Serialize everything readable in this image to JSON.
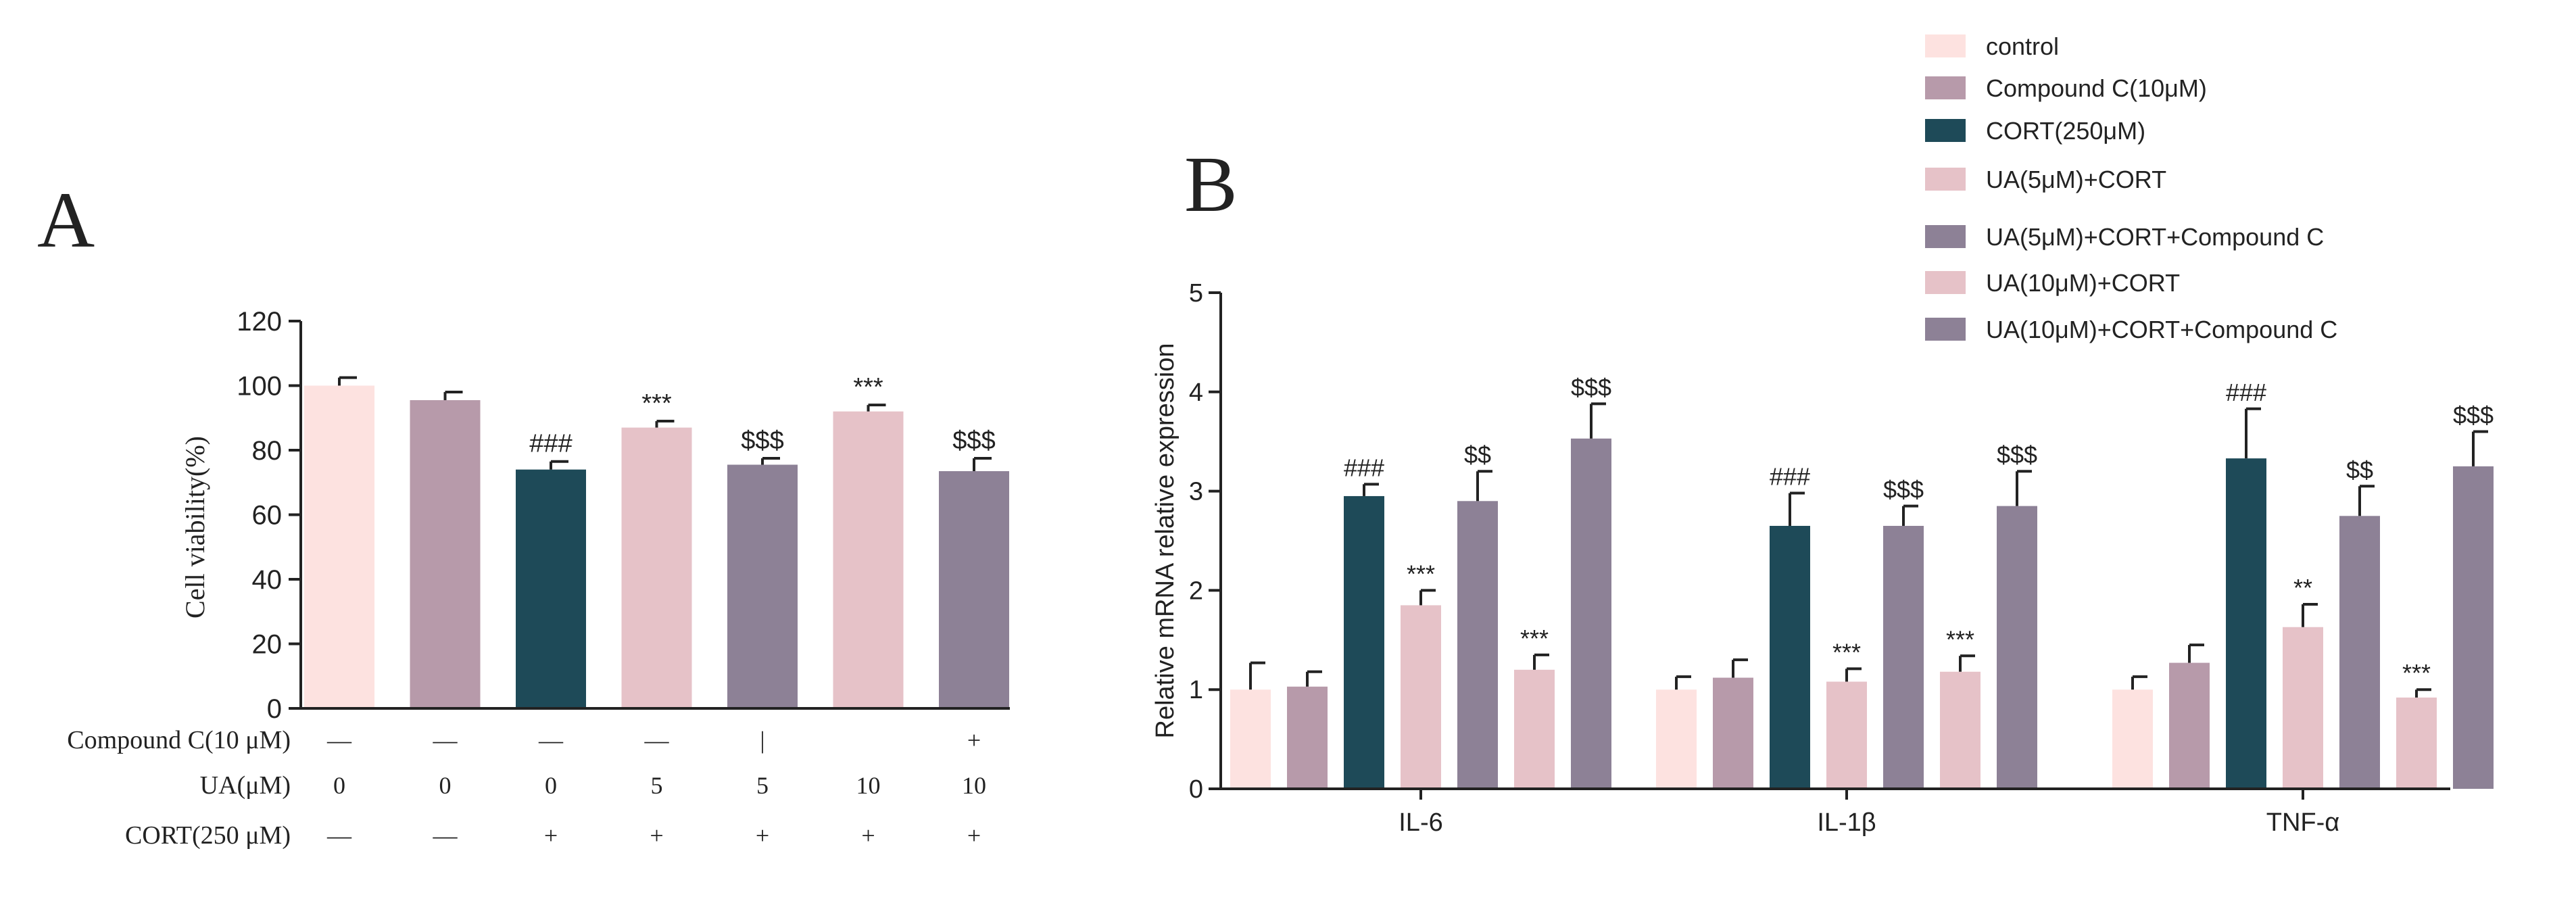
{
  "chart_data": [
    {
      "panel_label": "A",
      "type": "bar",
      "ylabel": "Cell viability(%)",
      "ylim": [
        0,
        120
      ],
      "yticks": [
        "0",
        "20",
        "40",
        "60",
        "80",
        "100",
        "120"
      ],
      "bars": [
        {
          "value": 100,
          "error": 2.5,
          "color": "#fde2e0",
          "annotation": ""
        },
        {
          "value": 95.5,
          "error": 2.5,
          "color": "#b79aaa",
          "annotation": ""
        },
        {
          "value": 74,
          "error": 2.5,
          "color": "#1e4a58",
          "annotation": "###"
        },
        {
          "value": 87,
          "error": 2,
          "color": "#e6c2c8",
          "annotation": "***"
        },
        {
          "value": 75.5,
          "error": 2,
          "color": "#8d8196",
          "annotation": "$$$"
        },
        {
          "value": 92,
          "error": 2,
          "color": "#e6c2c8",
          "annotation": "***"
        },
        {
          "value": 73.5,
          "error": 4,
          "color": "#8d8196",
          "annotation": "$$$"
        }
      ],
      "condition_table": [
        {
          "label": "Compound C(10 μM)",
          "cells": [
            "—",
            "—",
            "—",
            "—",
            "|",
            "",
            "+"
          ]
        },
        {
          "label": "UA(μM)",
          "cells": [
            "0",
            "0",
            "0",
            "5",
            "5",
            "10",
            "10"
          ]
        },
        {
          "label": "CORT(250 μM)",
          "cells": [
            "—",
            "—",
            "+",
            "+",
            "+",
            "+",
            "+"
          ]
        }
      ]
    },
    {
      "panel_label": "B",
      "type": "bar",
      "ylabel": "Relative mRNA relative expression",
      "ylim": [
        0,
        5
      ],
      "yticks": [
        "0",
        "1",
        "2",
        "3",
        "4",
        "5"
      ],
      "categories": [
        "IL-6",
        "IL-1β",
        "TNF-α"
      ],
      "series": [
        {
          "name": "control",
          "color": "#fde2e0",
          "values": [
            1.0,
            1.0,
            1.0
          ],
          "errors": [
            0.27,
            0.13,
            0.13
          ],
          "annotations": [
            "",
            "",
            ""
          ]
        },
        {
          "name": "Compound C(10μM)",
          "color": "#b79aaa",
          "values": [
            1.03,
            1.12,
            1.27
          ],
          "errors": [
            0.15,
            0.18,
            0.18
          ],
          "annotations": [
            "",
            "",
            ""
          ]
        },
        {
          "name": "CORT(250μM)",
          "color": "#1e4a58",
          "values": [
            2.95,
            2.65,
            3.33
          ],
          "errors": [
            0.12,
            0.33,
            0.5
          ],
          "annotations": [
            "###",
            "###",
            "###"
          ]
        },
        {
          "name": "UA(5μM)+CORT",
          "color": "#e6c2c8",
          "values": [
            1.85,
            1.08,
            1.63
          ],
          "errors": [
            0.15,
            0.13,
            0.23
          ],
          "annotations": [
            "***",
            "***",
            "**"
          ]
        },
        {
          "name": "UA(5μM)+CORT+Compound C",
          "color": "#8d8196",
          "values": [
            2.9,
            2.65,
            2.75
          ],
          "errors": [
            0.3,
            0.2,
            0.3
          ],
          "annotations": [
            "$$",
            "$$$",
            "$$"
          ]
        },
        {
          "name": "UA(10μM)+CORT",
          "color": "#e6c2c8",
          "values": [
            1.2,
            1.18,
            0.92
          ],
          "errors": [
            0.15,
            0.16,
            0.08
          ],
          "annotations": [
            "***",
            "***",
            "***"
          ]
        },
        {
          "name": "UA(10μM)+CORT+Compound C",
          "color": "#8d8196",
          "values": [
            3.53,
            2.85,
            3.25
          ],
          "errors": [
            0.35,
            0.35,
            0.35
          ],
          "annotations": [
            "$$$",
            "$$$",
            "$$$"
          ]
        }
      ]
    }
  ]
}
